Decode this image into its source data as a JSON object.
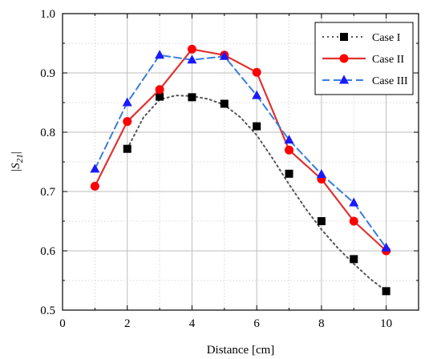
{
  "chart_data": {
    "type": "line",
    "title": "",
    "xlabel": "Distance [cm]",
    "ylabel_main": "|S",
    "ylabel_sub": "21",
    "ylabel_end": "|",
    "xlim": [
      0,
      11
    ],
    "ylim": [
      0.5,
      1.0
    ],
    "xticks": [
      0,
      2,
      4,
      6,
      8,
      10
    ],
    "xtick_labels": [
      "0",
      "2",
      "4",
      "6",
      "8",
      "10"
    ],
    "yticks": [
      0.5,
      0.6,
      0.7,
      0.8,
      0.9,
      1.0
    ],
    "ytick_labels": [
      "0.5",
      "0.6",
      "0.7",
      "0.8",
      "0.9",
      "1.0"
    ],
    "minor_x_step": 1,
    "minor_y_step": 0.05,
    "grid": true,
    "legend_position": "top-right",
    "series": [
      {
        "name": "Case I",
        "color": "#000000",
        "line_color": "#555555",
        "line_style": "dotted",
        "marker": "square",
        "data_points": [
          [
            2,
            0.772
          ],
          [
            3,
            0.86
          ],
          [
            4,
            0.859
          ],
          [
            5,
            0.848
          ],
          [
            6,
            0.81
          ],
          [
            7,
            0.73
          ],
          [
            8,
            0.65
          ],
          [
            9,
            0.586
          ],
          [
            10,
            0.532
          ]
        ],
        "curve": [
          [
            2,
            0.772
          ],
          [
            2.5,
            0.825
          ],
          [
            3,
            0.855
          ],
          [
            3.5,
            0.862
          ],
          [
            4,
            0.861
          ],
          [
            4.5,
            0.856
          ],
          [
            5,
            0.846
          ],
          [
            5.5,
            0.825
          ],
          [
            6,
            0.795
          ],
          [
            6.5,
            0.755
          ],
          [
            7,
            0.712
          ],
          [
            7.5,
            0.672
          ],
          [
            8,
            0.636
          ],
          [
            8.5,
            0.605
          ],
          [
            9,
            0.578
          ],
          [
            9.5,
            0.553
          ],
          [
            10,
            0.532
          ]
        ]
      },
      {
        "name": "Case II",
        "color": "#ff0000",
        "line_color": "#e03131",
        "line_style": "solid",
        "marker": "circle",
        "data_points": [
          [
            1,
            0.709
          ],
          [
            2,
            0.818
          ],
          [
            3,
            0.872
          ],
          [
            4,
            0.94
          ],
          [
            5,
            0.93
          ],
          [
            6,
            0.901
          ],
          [
            7,
            0.77
          ],
          [
            8,
            0.721
          ],
          [
            9,
            0.65
          ],
          [
            10,
            0.6
          ]
        ],
        "curve": [
          [
            1,
            0.709
          ],
          [
            2,
            0.818
          ],
          [
            3,
            0.872
          ],
          [
            4,
            0.94
          ],
          [
            5,
            0.93
          ],
          [
            6,
            0.901
          ],
          [
            7,
            0.77
          ],
          [
            8,
            0.721
          ],
          [
            9,
            0.65
          ],
          [
            10,
            0.6
          ]
        ]
      },
      {
        "name": "Case III",
        "color": "#1a1aff",
        "line_color": "#3a7ddb",
        "line_style": "dashed",
        "marker": "triangle",
        "data_points": [
          [
            1,
            0.738
          ],
          [
            2,
            0.85
          ],
          [
            3,
            0.93
          ],
          [
            4,
            0.922
          ],
          [
            5,
            0.928
          ],
          [
            6,
            0.862
          ],
          [
            7,
            0.787
          ],
          [
            8,
            0.729
          ],
          [
            9,
            0.681
          ],
          [
            10,
            0.605
          ]
        ],
        "curve": [
          [
            1,
            0.738
          ],
          [
            2,
            0.85
          ],
          [
            3,
            0.93
          ],
          [
            4,
            0.922
          ],
          [
            5,
            0.928
          ],
          [
            6,
            0.862
          ],
          [
            7,
            0.787
          ],
          [
            8,
            0.729
          ],
          [
            9,
            0.681
          ],
          [
            10,
            0.605
          ]
        ]
      }
    ]
  }
}
